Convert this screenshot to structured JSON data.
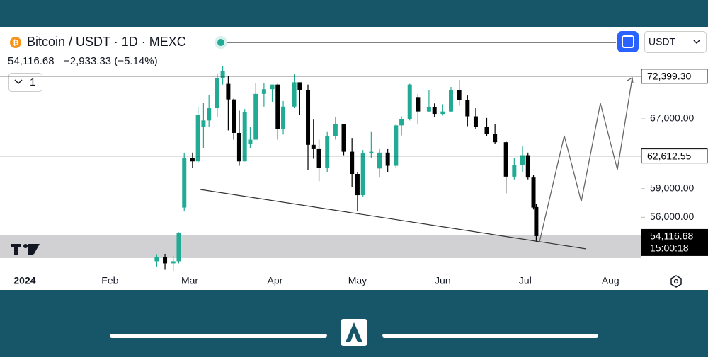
{
  "symbol_title": "Bitcoin / USDT · 1D · MEXC",
  "change": "−2,933.33 (−5.14%)",
  "interval_button": "1",
  "currency": "USDT",
  "chart_data": {
    "type": "candlestick",
    "log_scale": true,
    "up_color": "#22ab94",
    "down_color": "#000000",
    "ylim": [
      51000,
      79000
    ],
    "yticks": [
      {
        "value": 67000,
        "label": "67,000.00"
      },
      {
        "value": 59000,
        "label": "59,000.00"
      },
      {
        "value": 56000,
        "label": "56,000.00"
      }
    ],
    "levels": [
      {
        "value": 72399.3,
        "label": "72,399.30"
      },
      {
        "value": 62612.55,
        "label": "62,612.55"
      }
    ],
    "last_price": {
      "value": 54116.68,
      "label": "54,116.68",
      "countdown": "15:00:18"
    },
    "xlim": [
      "2023-12-23",
      "2024-08-12"
    ],
    "xticks": [
      {
        "value": "2024-01-01",
        "label": "2024"
      },
      {
        "value": "2024-02-01",
        "label": "Feb"
      },
      {
        "value": "2024-03-01",
        "label": "Mar"
      },
      {
        "value": "2024-04-01",
        "label": "Apr"
      },
      {
        "value": "2024-05-01",
        "label": "May"
      },
      {
        "value": "2024-06-01",
        "label": "Jun"
      },
      {
        "value": "2024-07-01",
        "label": "Jul"
      },
      {
        "value": "2024-08-01",
        "label": "Aug"
      }
    ],
    "x": [
      "2024-02-18",
      "2024-02-21",
      "2024-02-24",
      "2024-02-26",
      "2024-02-28",
      "2024-03-02",
      "2024-03-04",
      "2024-03-06",
      "2024-03-08",
      "2024-03-11",
      "2024-03-13",
      "2024-03-15",
      "2024-03-17",
      "2024-03-19",
      "2024-03-21",
      "2024-03-23",
      "2024-03-25",
      "2024-03-28",
      "2024-03-31",
      "2024-04-02",
      "2024-04-04",
      "2024-04-08",
      "2024-04-10",
      "2024-04-13",
      "2024-04-15",
      "2024-04-17",
      "2024-04-20",
      "2024-04-23",
      "2024-04-26",
      "2024-04-29",
      "2024-05-01",
      "2024-05-03",
      "2024-05-06",
      "2024-05-09",
      "2024-05-12",
      "2024-05-15",
      "2024-05-17",
      "2024-05-20",
      "2024-05-23",
      "2024-05-27",
      "2024-05-29",
      "2024-06-01",
      "2024-06-04",
      "2024-06-07",
      "2024-06-10",
      "2024-06-13",
      "2024-06-17",
      "2024-06-20",
      "2024-06-24",
      "2024-06-27",
      "2024-06-30",
      "2024-07-02",
      "2024-07-04",
      "2024-07-05"
    ],
    "open": [
      51700,
      52100,
      51500,
      51700,
      57000,
      62400,
      62000,
      66000,
      66800,
      68300,
      72100,
      71400,
      69400,
      65300,
      62000,
      64000,
      64500,
      70100,
      70700,
      71300,
      65800,
      68500,
      71600,
      70600,
      63900,
      63400,
      61300,
      64900,
      66400,
      63100,
      60600,
      58300,
      62900,
      61200,
      63000,
      61500,
      66200,
      67000,
      69700,
      67900,
      68400,
      67600,
      67900,
      70600,
      69300,
      67300,
      66000,
      65200,
      64200,
      60300,
      61600,
      62700,
      60200,
      57050
    ],
    "high": [
      52300,
      52400,
      52200,
      54500,
      63000,
      63000,
      68500,
      69000,
      70000,
      72800,
      73700,
      72400,
      69500,
      68000,
      68200,
      66000,
      71500,
      71500,
      71300,
      71400,
      69200,
      72700,
      71600,
      71300,
      66900,
      64500,
      65400,
      67200,
      66400,
      64700,
      60800,
      63300,
      65400,
      63400,
      63400,
      66400,
      67300,
      71400,
      70100,
      70600,
      68900,
      68800,
      71000,
      71900,
      69900,
      68300,
      67100,
      66400,
      64300,
      62400,
      63800,
      63000,
      60500,
      57400
    ],
    "low": [
      51200,
      50900,
      50800,
      51500,
      56600,
      61300,
      61800,
      63500,
      66000,
      67200,
      71300,
      65600,
      64500,
      61500,
      62000,
      63500,
      64500,
      68500,
      69100,
      64500,
      65100,
      68300,
      67500,
      61000,
      62300,
      59800,
      60800,
      64500,
      62700,
      59200,
      56600,
      58100,
      62400,
      60200,
      60800,
      61300,
      65000,
      66800,
      66300,
      67800,
      67200,
      67400,
      67800,
      68600,
      66100,
      65800,
      64900,
      64000,
      58500,
      60000,
      60800,
      60000,
      56800,
      53500
    ],
    "close": [
      52100,
      51500,
      51700,
      54400,
      62400,
      62000,
      67500,
      66800,
      68300,
      72100,
      73100,
      69400,
      65300,
      62000,
      67800,
      64500,
      70100,
      70700,
      71300,
      65800,
      68500,
      71600,
      70600,
      63900,
      63400,
      61300,
      64900,
      66400,
      63100,
      60600,
      58300,
      62900,
      63100,
      63000,
      61500,
      66200,
      67000,
      71300,
      67900,
      68400,
      67600,
      67900,
      70600,
      69300,
      67300,
      66000,
      65200,
      64200,
      60300,
      61600,
      62700,
      60200,
      57000,
      54116.68
    ]
  }
}
